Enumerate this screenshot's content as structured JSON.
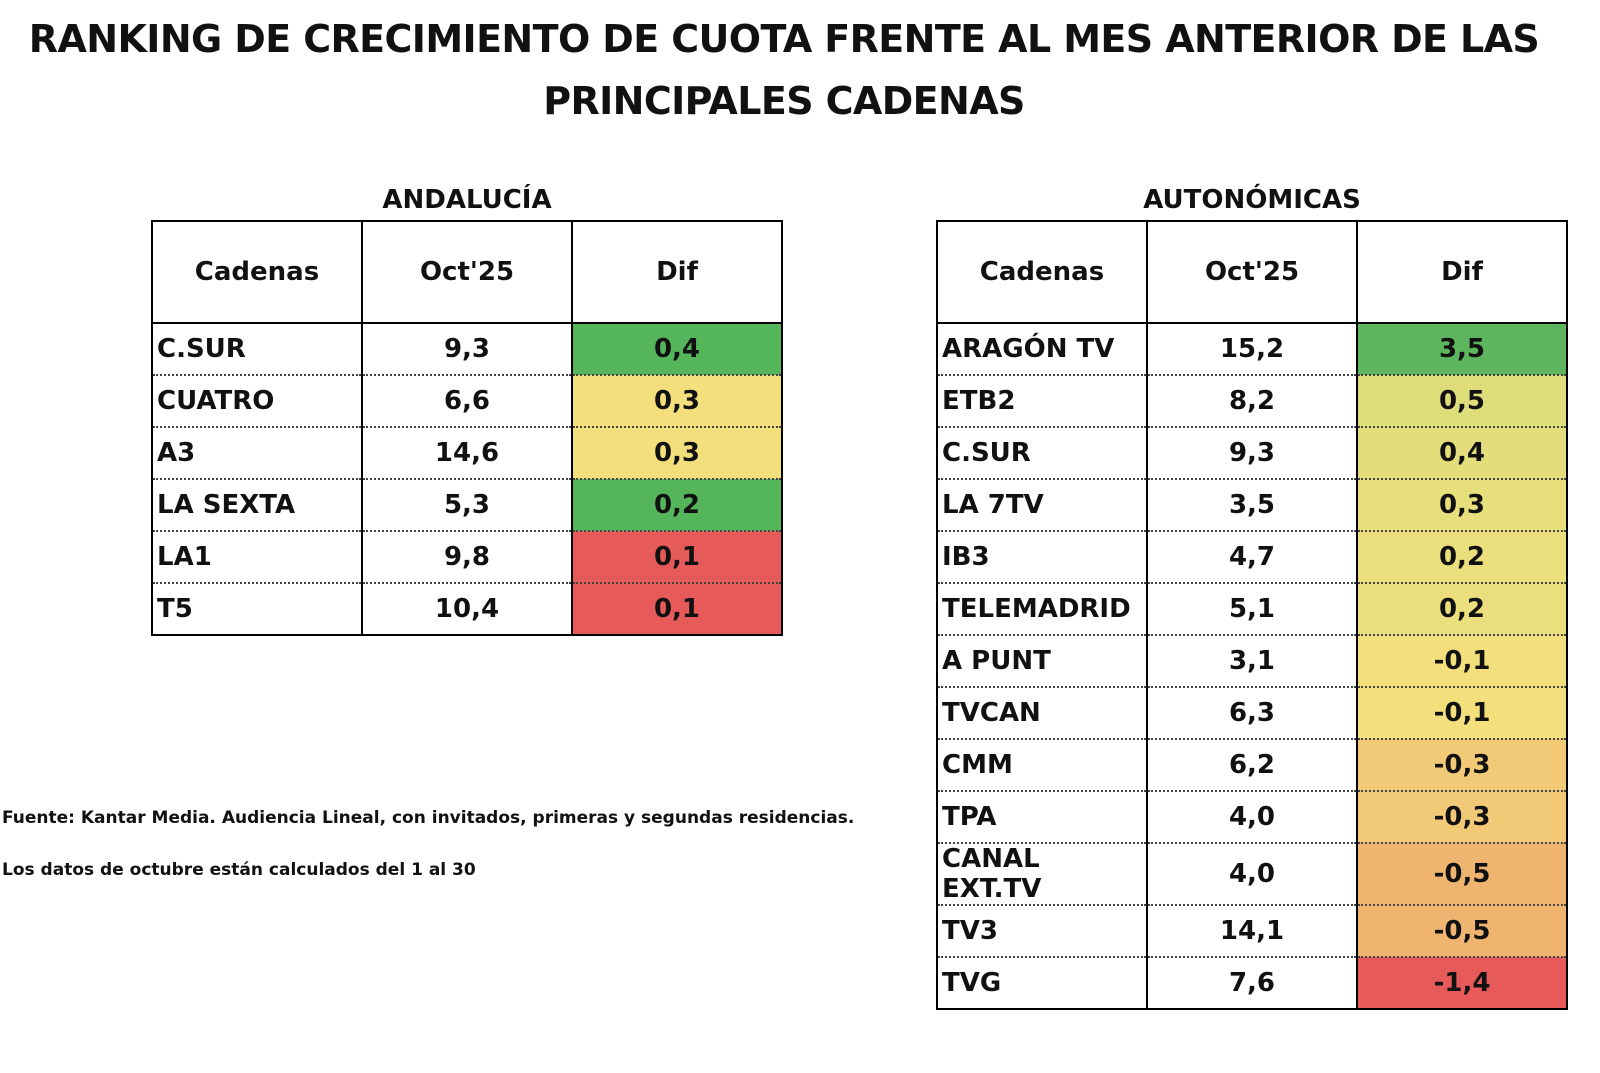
{
  "title": {
    "line1": "RANKING DE CRECIMIENTO DE CUOTA FRENTE AL MES ANTERIOR DE LAS",
    "line2": "PRINCIPALES CADENAS"
  },
  "andalucia": {
    "title": "ANDALUCÍA",
    "headers": [
      "Cadenas",
      "Oct'25",
      "Dif"
    ],
    "rows": [
      {
        "cadena": "C.SUR",
        "oct25": "9,3",
        "dif": "0,4",
        "color": "#55b55a"
      },
      {
        "cadena": "CUATRO",
        "oct25": "6,6",
        "dif": "0,3",
        "color": "#f3e07c"
      },
      {
        "cadena": "A3",
        "oct25": "14,6",
        "dif": "0,3",
        "color": "#f3e07c"
      },
      {
        "cadena": "LA SEXTA",
        "oct25": "5,3",
        "dif": "0,2",
        "color": "#55b55a"
      },
      {
        "cadena": "LA1",
        "oct25": "9,8",
        "dif": "0,1",
        "color": "#e65a5a"
      },
      {
        "cadena": "T5",
        "oct25": "10,4",
        "dif": "0,1",
        "color": "#e65a5a"
      }
    ]
  },
  "autonomicas": {
    "title": "AUTONÓMICAS",
    "headers": [
      "Cadenas",
      "Oct'25",
      "Dif"
    ],
    "rows": [
      {
        "cadena": "ARAGÓN TV",
        "oct25": "15,2",
        "dif": "3,5",
        "color": "#5db65e"
      },
      {
        "cadena": "ETB2",
        "oct25": "8,2",
        "dif": "0,5",
        "color": "#dfdc7a"
      },
      {
        "cadena": "C.SUR",
        "oct25": "9,3",
        "dif": "0,4",
        "color": "#e3dd7c"
      },
      {
        "cadena": "LA 7TV",
        "oct25": "3,5",
        "dif": "0,3",
        "color": "#e7de7c"
      },
      {
        "cadena": "IB3",
        "oct25": "4,7",
        "dif": "0,2",
        "color": "#ebdf7d"
      },
      {
        "cadena": "TELEMADRID",
        "oct25": "5,1",
        "dif": "0,2",
        "color": "#ebdf7d"
      },
      {
        "cadena": "A PUNT",
        "oct25": "3,1",
        "dif": "-0,1",
        "color": "#f3e07d"
      },
      {
        "cadena": "TVCAN",
        "oct25": "6,3",
        "dif": "-0,1",
        "color": "#f3e07d"
      },
      {
        "cadena": "CMM",
        "oct25": "6,2",
        "dif": "-0,3",
        "color": "#f1c977"
      },
      {
        "cadena": "TPA",
        "oct25": "4,0",
        "dif": "-0,3",
        "color": "#f1c977"
      },
      {
        "cadena": "CANAL EXT.TV",
        "oct25": "4,0",
        "dif": "-0,5",
        "color": "#efb570"
      },
      {
        "cadena": "TV3",
        "oct25": "14,1",
        "dif": "-0,5",
        "color": "#efb570"
      },
      {
        "cadena": "TVG",
        "oct25": "7,6",
        "dif": "-1,4",
        "color": "#e65a5a"
      }
    ]
  },
  "footnotes": {
    "source": "Fuente: Kantar Media. Audiencia Lineal, con invitados, primeras y segundas residencias.",
    "period": "Los datos de octubre están calculados del 1 al 30"
  }
}
